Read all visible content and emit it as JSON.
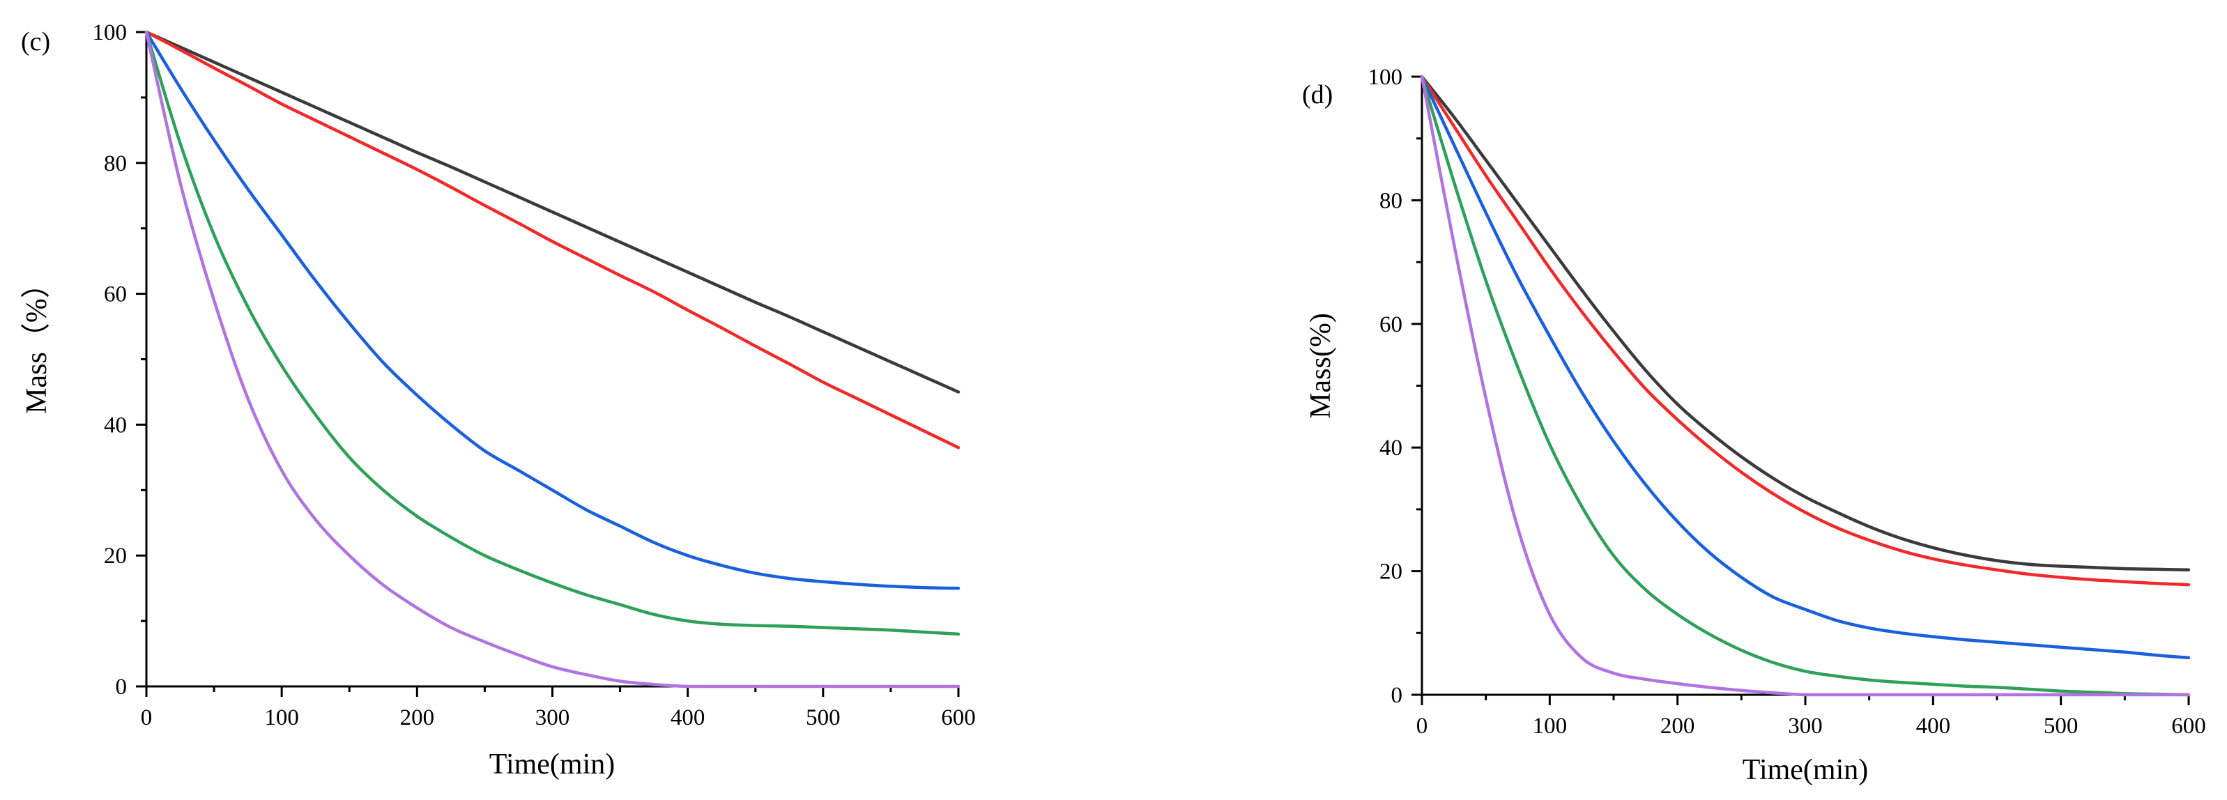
{
  "chart_data": [
    {
      "type": "line",
      "panel_label": "(c)",
      "title": "",
      "xlabel": "Time(min)",
      "ylabel": "Mass（%）",
      "xlim": [
        0,
        600
      ],
      "ylim": [
        0,
        100
      ],
      "xticks": [
        "0",
        "100",
        "200",
        "300",
        "400",
        "500",
        "600"
      ],
      "yticks": [
        "0",
        "20",
        "40",
        "60",
        "80",
        "100"
      ],
      "grid": false,
      "x": [
        0,
        25,
        50,
        75,
        100,
        125,
        150,
        175,
        200,
        225,
        250,
        275,
        300,
        325,
        350,
        375,
        400,
        425,
        450,
        475,
        500,
        525,
        550,
        575,
        600
      ],
      "series": [
        {
          "name": "black",
          "color": "#3a3a3a",
          "values": [
            100,
            97.7,
            95.4,
            93.1,
            90.8,
            88.5,
            86.2,
            83.9,
            81.6,
            79.4,
            77.1,
            74.8,
            72.5,
            70.2,
            67.9,
            65.6,
            63.3,
            61.0,
            58.7,
            56.5,
            54.2,
            51.9,
            49.6,
            47.3,
            45.0
          ]
        },
        {
          "name": "red",
          "color": "#f02a2a",
          "values": [
            100,
            97.3,
            94.5,
            91.8,
            89.0,
            86.5,
            84.0,
            81.5,
            79.0,
            76.3,
            73.5,
            70.8,
            68.0,
            65.4,
            62.8,
            60.3,
            57.5,
            54.8,
            52.0,
            49.3,
            46.5,
            44.0,
            41.5,
            39.0,
            36.5
          ]
        },
        {
          "name": "blue",
          "color": "#1a5fdc",
          "values": [
            100,
            91.5,
            83.5,
            76.0,
            69.0,
            62.0,
            55.5,
            49.5,
            44.5,
            40.0,
            36.0,
            33.0,
            30.0,
            27.0,
            24.5,
            22.0,
            20.0,
            18.5,
            17.3,
            16.5,
            16.0,
            15.6,
            15.3,
            15.1,
            15.0
          ]
        },
        {
          "name": "green",
          "color": "#2fa05a",
          "values": [
            100,
            83.0,
            69.0,
            58.0,
            49.0,
            41.5,
            35.0,
            30.0,
            26.0,
            22.8,
            20.0,
            17.8,
            15.8,
            14.0,
            12.5,
            11.0,
            10.0,
            9.5,
            9.3,
            9.2,
            9.0,
            8.8,
            8.6,
            8.3,
            8.0
          ]
        },
        {
          "name": "purple",
          "color": "#b073e0",
          "values": [
            100,
            77.0,
            59.0,
            44.0,
            33.0,
            25.5,
            20.0,
            15.5,
            12.0,
            9.0,
            6.8,
            4.8,
            3.0,
            1.8,
            0.8,
            0.3,
            0.0,
            0.0,
            0.0,
            0.0,
            0.0,
            0.0,
            0.0,
            0.0,
            0.0
          ]
        }
      ]
    },
    {
      "type": "line",
      "panel_label": "(d)",
      "title": "",
      "xlabel": "Time(min)",
      "ylabel": "Mass(%)",
      "xlim": [
        0,
        600
      ],
      "ylim": [
        0,
        100
      ],
      "xticks": [
        "0",
        "100",
        "200",
        "300",
        "400",
        "500",
        "600"
      ],
      "yticks": [
        "0",
        "20",
        "40",
        "60",
        "80",
        "100"
      ],
      "grid": false,
      "x": [
        0,
        25,
        50,
        75,
        100,
        125,
        150,
        175,
        200,
        225,
        250,
        275,
        300,
        325,
        350,
        375,
        400,
        425,
        450,
        475,
        500,
        525,
        550,
        575,
        600
      ],
      "series": [
        {
          "name": "black",
          "color": "#3a3a3a",
          "values": [
            100,
            93.5,
            86.5,
            79.5,
            72.5,
            65.5,
            58.8,
            52.5,
            47.0,
            42.5,
            38.5,
            35.0,
            32.0,
            29.5,
            27.2,
            25.3,
            23.8,
            22.6,
            21.7,
            21.1,
            20.8,
            20.6,
            20.4,
            20.3,
            20.2
          ]
        },
        {
          "name": "red",
          "color": "#f02a2a",
          "values": [
            100,
            92.0,
            84.0,
            76.5,
            69.0,
            62.0,
            55.5,
            49.5,
            44.5,
            40.0,
            36.0,
            32.5,
            29.5,
            27.0,
            25.0,
            23.3,
            22.0,
            21.0,
            20.2,
            19.5,
            19.0,
            18.6,
            18.3,
            18.0,
            17.8
          ]
        },
        {
          "name": "blue",
          "color": "#1a5fdc",
          "values": [
            100,
            89.0,
            78.0,
            67.5,
            58.0,
            49.0,
            41.0,
            34.0,
            28.0,
            23.0,
            19.0,
            15.8,
            13.8,
            12.0,
            10.8,
            10.0,
            9.4,
            8.9,
            8.5,
            8.1,
            7.7,
            7.3,
            6.9,
            6.4,
            6.0
          ]
        },
        {
          "name": "green",
          "color": "#2fa05a",
          "values": [
            100,
            83.0,
            67.0,
            53.0,
            40.5,
            30.5,
            22.5,
            17.0,
            13.0,
            9.8,
            7.2,
            5.2,
            3.8,
            3.0,
            2.4,
            2.0,
            1.7,
            1.4,
            1.2,
            0.9,
            0.6,
            0.4,
            0.2,
            0.1,
            0.0
          ]
        },
        {
          "name": "purple",
          "color": "#b073e0",
          "values": [
            100,
            73.0,
            48.0,
            27.0,
            13.0,
            6.0,
            3.5,
            2.5,
            1.8,
            1.2,
            0.7,
            0.3,
            0.0,
            0.0,
            0.0,
            0.0,
            0.0,
            0.0,
            0.0,
            0.0,
            0.0,
            0.0,
            0.0,
            0.0,
            0.0
          ]
        }
      ]
    }
  ]
}
